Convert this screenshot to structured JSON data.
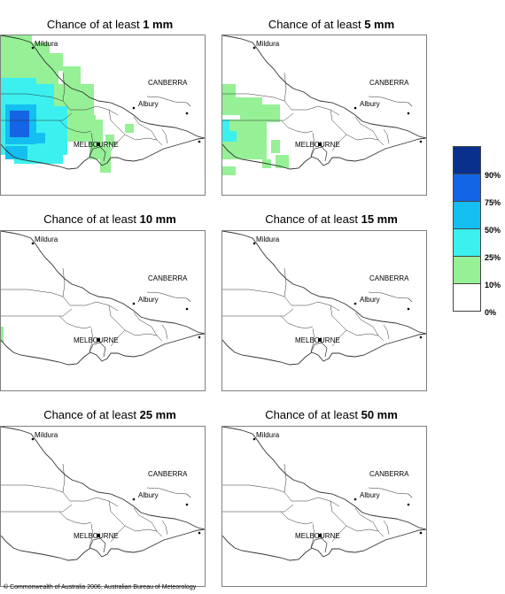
{
  "panels": [
    {
      "prefix": "Chance of at least ",
      "amount": "1 mm"
    },
    {
      "prefix": "Chance of at least ",
      "amount": "5 mm"
    },
    {
      "prefix": "Chance of at least ",
      "amount": "10 mm"
    },
    {
      "prefix": "Chance of at least ",
      "amount": "15 mm"
    },
    {
      "prefix": "Chance of at least ",
      "amount": "25 mm"
    },
    {
      "prefix": "Chance of at least ",
      "amount": "50 mm"
    }
  ],
  "cities": {
    "mildura": "Mildura",
    "canberra": "CANBERRA",
    "albury": "Albury",
    "melbourne": "MELBOURNE"
  },
  "legend": {
    "labels": [
      "90%",
      "75%",
      "50%",
      "25%",
      "10%",
      "0%"
    ],
    "colors": [
      "#08308c",
      "#1464e6",
      "#14bef0",
      "#3cf0f0",
      "#96f096",
      "#ffffff"
    ]
  },
  "footer": "© Commonwealth of Australia 2006, Australian Bureau of Meteorology"
}
